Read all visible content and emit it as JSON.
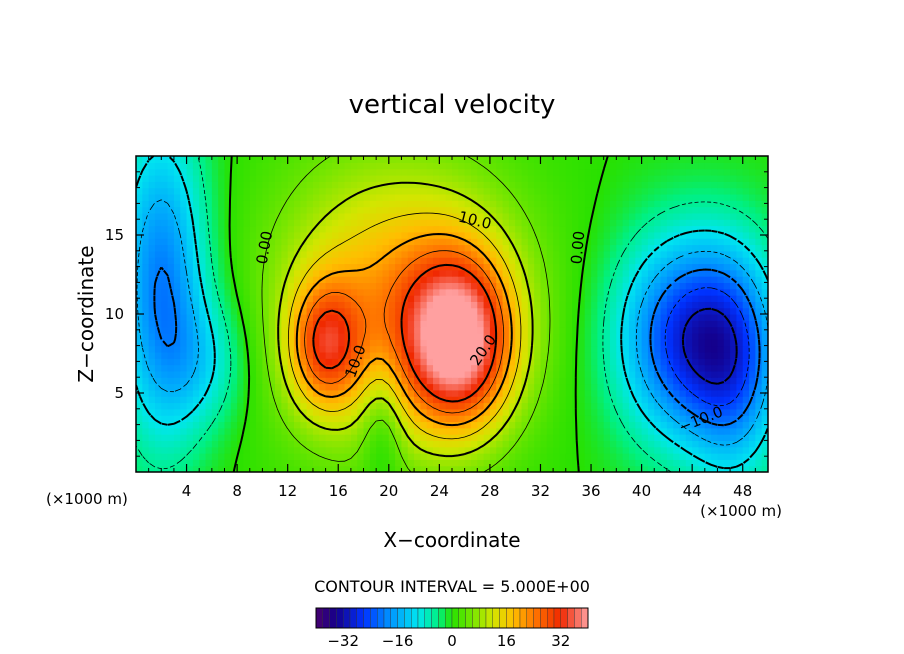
{
  "colors": {
    "negative_low": "#1a0080",
    "neutral": "#22e000",
    "positive_high": "#e60000",
    "frame": "#000000"
  },
  "chart_data": {
    "type": "heatmap",
    "title": "vertical velocity",
    "xlabel": "X−coordinate",
    "ylabel": "Z−coordinate",
    "x_unit_left": "(×1000 m)",
    "x_unit_right": "(×1000 m)",
    "xlim": [
      0,
      50
    ],
    "ylim": [
      0,
      20
    ],
    "x_ticks": [
      4,
      8,
      12,
      16,
      20,
      24,
      28,
      32,
      36,
      40,
      44,
      48
    ],
    "y_ticks": [
      5,
      10,
      15
    ],
    "contour_interval_text": "CONTOUR INTERVAL = 5.000E+00",
    "colorbar": {
      "range": [
        -40,
        40
      ],
      "ticks": [
        {
          "value": -32,
          "label": "−32"
        },
        {
          "value": -16,
          "label": "−16"
        },
        {
          "value": 0,
          "label": "0"
        },
        {
          "value": 16,
          "label": "16"
        },
        {
          "value": 32,
          "label": "32"
        }
      ]
    },
    "contour_labels": [
      {
        "text": "0.00",
        "x": 10.2,
        "y": 14.2,
        "rotation": -80
      },
      {
        "text": "0.00",
        "x": 35.0,
        "y": 14.2,
        "rotation": -85
      },
      {
        "text": "10.0",
        "x": 26.8,
        "y": 15.9,
        "rotation": 14
      },
      {
        "text": "10.0",
        "x": 17.4,
        "y": 7.0,
        "rotation": -70
      },
      {
        "text": "20.0",
        "x": 27.5,
        "y": 7.7,
        "rotation": -55
      },
      {
        "text": "−10.0",
        "x": 44.7,
        "y": 3.3,
        "rotation": -22
      }
    ],
    "field_features": [
      {
        "sign": "positive",
        "x": 25.5,
        "y": 8.2,
        "peak": 34,
        "sx": 3.0,
        "sy": 3.8
      },
      {
        "sign": "positive",
        "x": 23.0,
        "y": 11.0,
        "peak": 14,
        "sx": 6.0,
        "sy": 6.0
      },
      {
        "sign": "positive",
        "x": 15.0,
        "y": 8.0,
        "peak": 21,
        "sx": 2.0,
        "sy": 2.8
      },
      {
        "sign": "positive",
        "x": 17.0,
        "y": 10.5,
        "peak": 9,
        "sx": 5.5,
        "sy": 6.5
      },
      {
        "sign": "negative",
        "x": 44.0,
        "y": 8.5,
        "peak": -28,
        "sx": 4.0,
        "sy": 4.5
      },
      {
        "sign": "negative",
        "x": 47.5,
        "y": 6.0,
        "peak": -12,
        "sx": 2.5,
        "sy": 5.0
      },
      {
        "sign": "negative",
        "x": 2.0,
        "y": 12.0,
        "peak": -20,
        "sx": 2.5,
        "sy": 7.0
      },
      {
        "sign": "negative",
        "x": 5.5,
        "y": 7.0,
        "peak": -8,
        "sx": 2.5,
        "sy": 3.0
      },
      {
        "sign": "negative",
        "x": 19.5,
        "y": 3.0,
        "peak": -7,
        "sx": 1.2,
        "sy": 3.0
      }
    ]
  }
}
